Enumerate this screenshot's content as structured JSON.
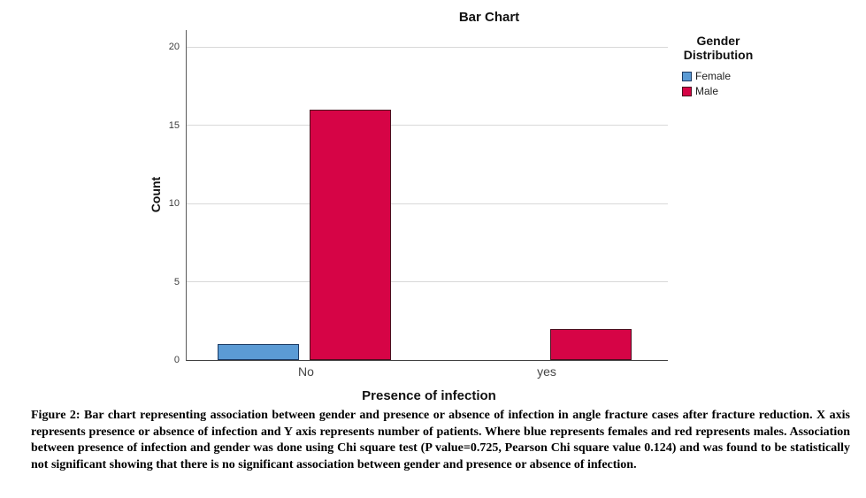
{
  "chart_data": {
    "type": "bar",
    "title": "Bar Chart",
    "xlabel": "Presence of infection",
    "ylabel": "Count",
    "categories": [
      "No",
      "yes"
    ],
    "series": [
      {
        "name": "Female",
        "color": "#5B9BD5",
        "border": "#1B3A63",
        "values": [
          1,
          0
        ]
      },
      {
        "name": "Male",
        "color": "#D60446",
        "border": "#4A0E1E",
        "values": [
          16,
          2
        ]
      }
    ],
    "yticks": [
      0,
      5,
      10,
      15,
      20
    ],
    "ylim": [
      0,
      21
    ],
    "grid": true,
    "gridline_color": "#d9d9d9",
    "legend_position": "right"
  },
  "legend": {
    "title_line1": "Gender",
    "title_line2": "Distribution",
    "items": [
      {
        "label": "Female",
        "fill": "#5B9BD5",
        "border": "#1B3A63"
      },
      {
        "label": "Male",
        "fill": "#D60446",
        "border": "#4A0E1E"
      }
    ]
  },
  "caption": {
    "text": "Figure 2: Bar chart representing association between gender and presence or absence of infection in angle fracture cases after fracture reduction. X axis represents presence or absence of infection and Y axis represents number of patients. Where blue represents females and red represents males. Association between presence of infection and gender was done using Chi square test (P value=0.725, Pearson Chi square value 0.124) and was found to be statistically not significant showing that there is no significant association between gender and presence or absence of infection."
  }
}
